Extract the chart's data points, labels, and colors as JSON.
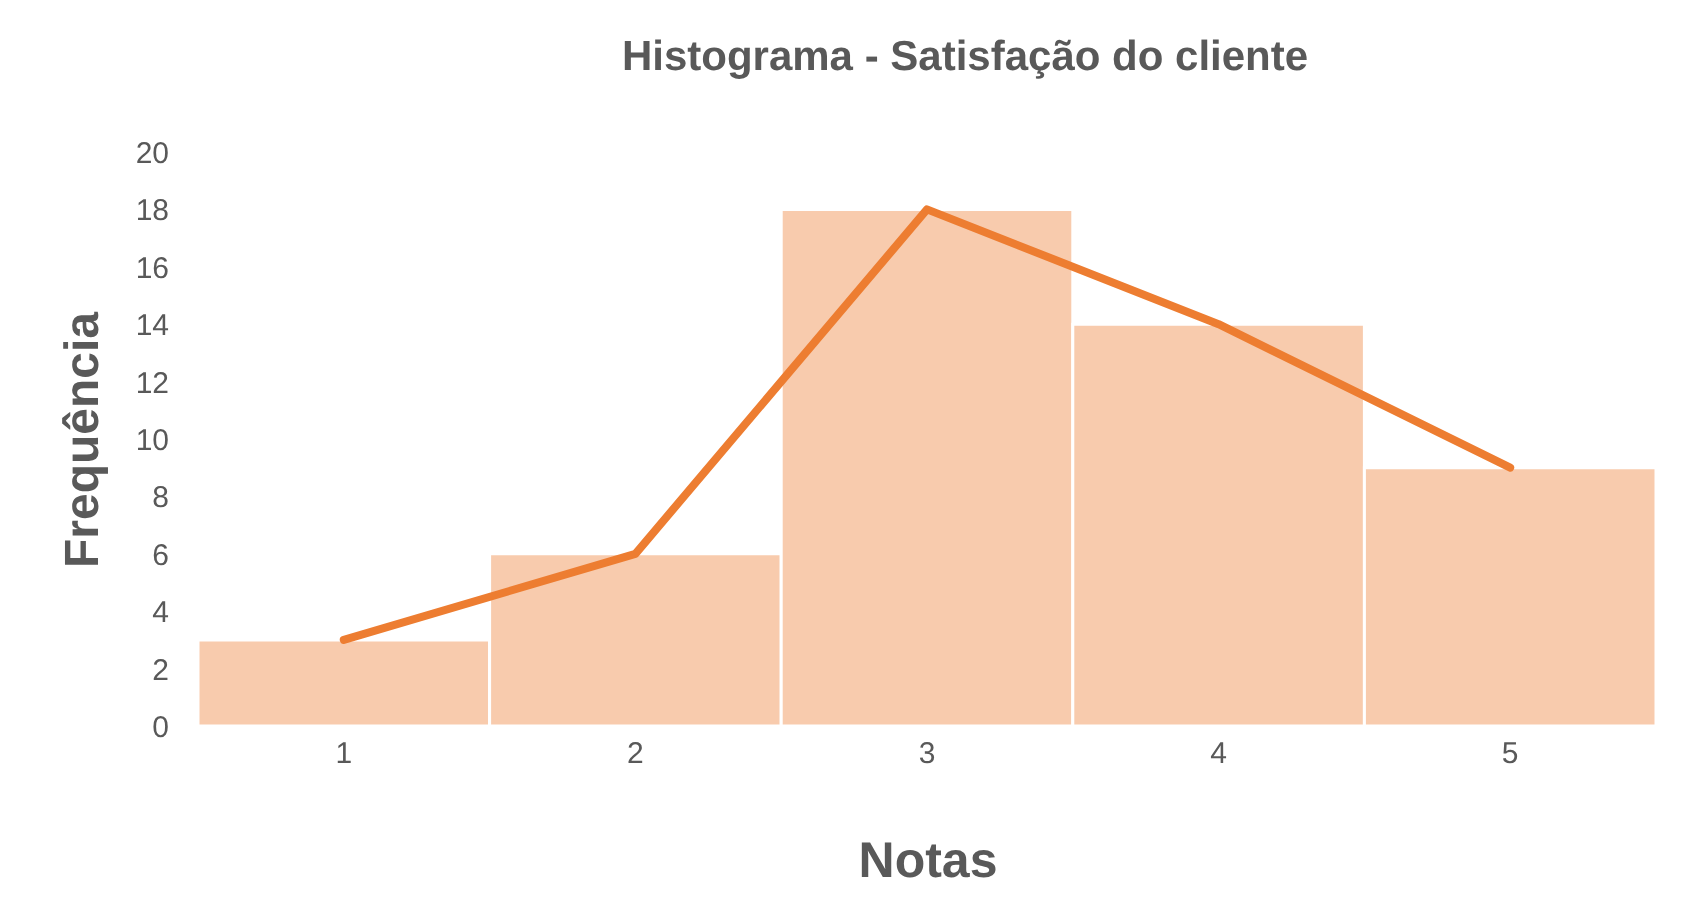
{
  "chart_data": {
    "type": "bar",
    "title": "Histograma - Satisfação do cliente",
    "xlabel": "Notas",
    "ylabel": "Frequência",
    "categories": [
      "1",
      "2",
      "3",
      "4",
      "5"
    ],
    "series": [
      {
        "color": "#f8cbad",
        "values": [
          3,
          6,
          18,
          14,
          9
        ]
      },
      {
        "type": "line",
        "color": "#ed7d31",
        "values": [
          3,
          6,
          18,
          14,
          9
        ]
      }
    ],
    "ylim": [
      0,
      20
    ],
    "yticks": [
      0,
      2,
      4,
      6,
      8,
      10,
      12,
      14,
      16,
      18,
      20
    ],
    "grid": false
  }
}
